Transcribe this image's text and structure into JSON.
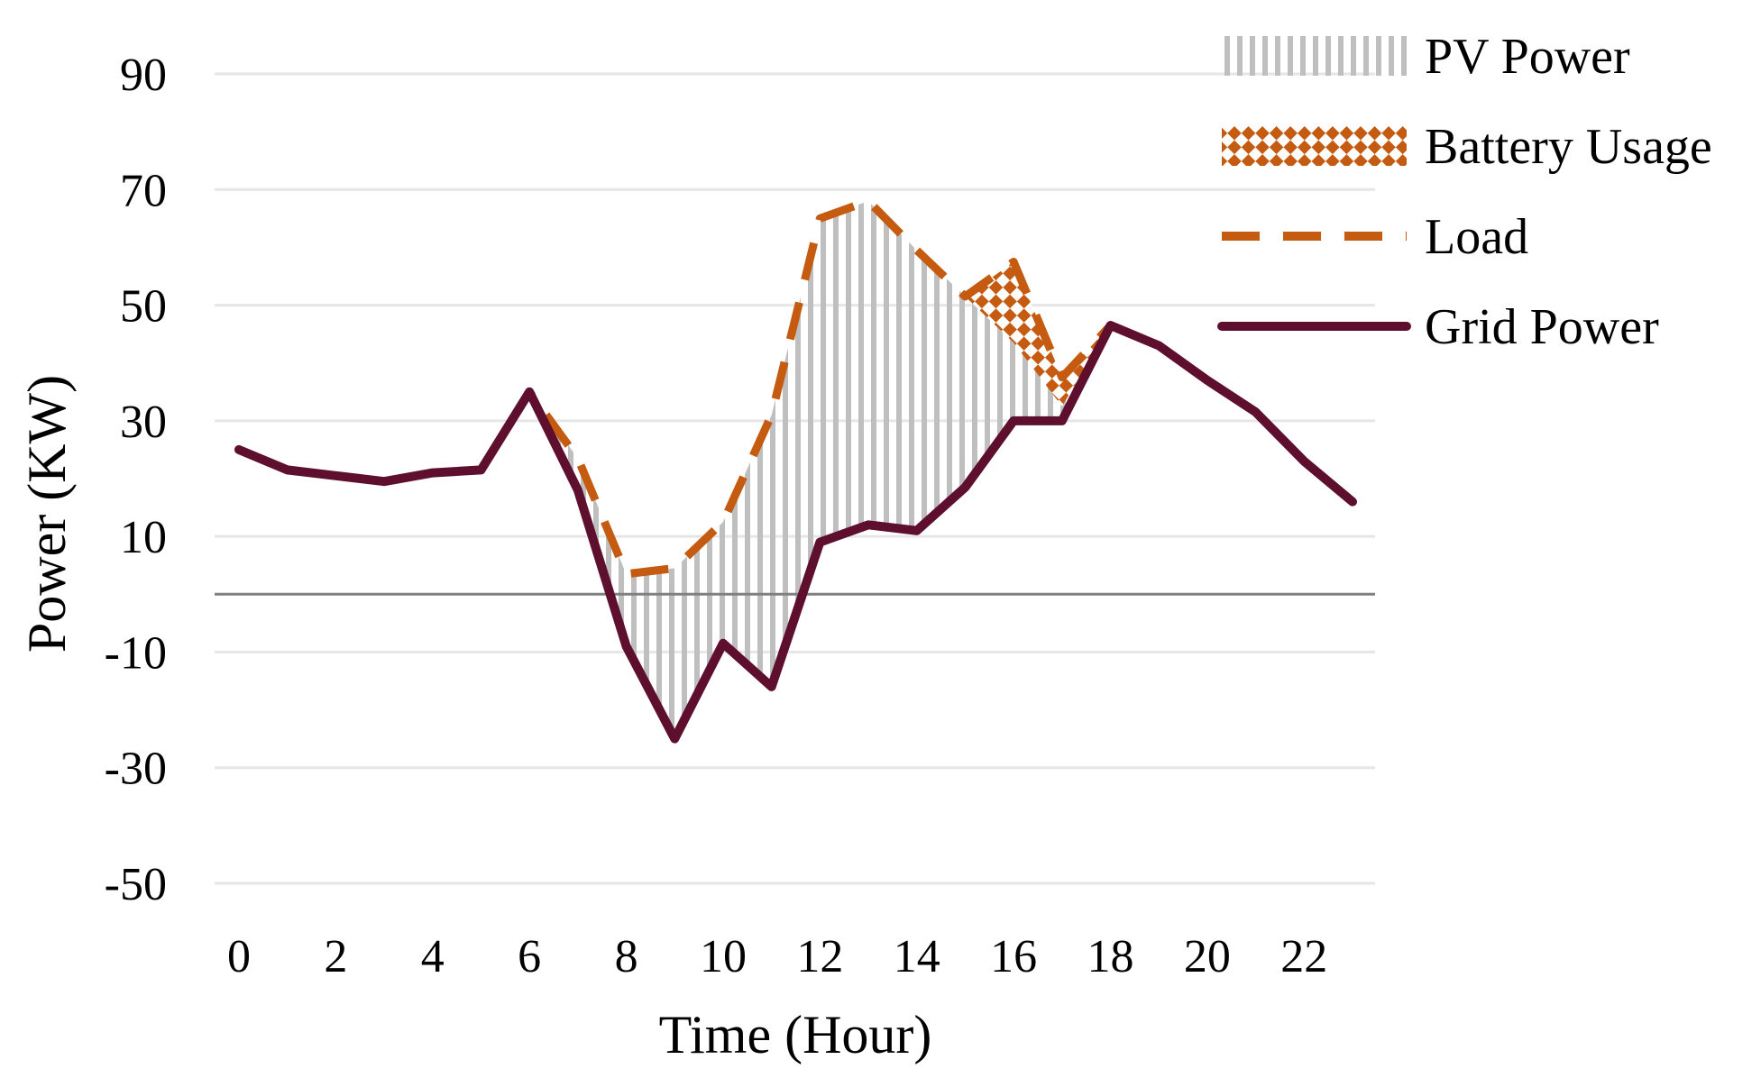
{
  "chart_data": {
    "type": "line",
    "title": "",
    "xlabel": "Time (Hour)",
    "ylabel": "Power (KW)",
    "xlim": [
      0,
      23
    ],
    "ylim": [
      -50,
      90
    ],
    "x_ticks": [
      0,
      2,
      4,
      6,
      8,
      10,
      12,
      14,
      16,
      18,
      20,
      22
    ],
    "y_ticks": [
      90,
      70,
      50,
      30,
      10,
      -10,
      -30,
      -50
    ],
    "x": [
      0,
      1,
      2,
      3,
      4,
      5,
      6,
      7,
      8,
      9,
      10,
      11,
      12,
      13,
      14,
      15,
      16,
      17,
      18,
      19,
      20,
      21,
      22,
      23
    ],
    "grid": true,
    "legend_position": "top-right",
    "colors": {
      "pv": "#bfbfbf",
      "battery": "#c55a11",
      "load": "#c55a11",
      "grid_power": "#5f0f2e",
      "gridline": "#e6e6e6",
      "zero_line": "#808080"
    },
    "series": [
      {
        "name": "Load",
        "values": [
          25,
          21.5,
          20.5,
          19.5,
          21,
          21.5,
          35,
          23.5,
          3.5,
          4.5,
          12.5,
          31,
          65,
          68,
          59.5,
          51.5,
          57.5,
          37.5,
          46.5,
          43,
          37,
          31.5,
          23,
          16
        ]
      },
      {
        "name": "Grid Power",
        "values": [
          25,
          21.5,
          20.5,
          19.5,
          21,
          21.5,
          35,
          18,
          -9,
          -25,
          -8.5,
          -16,
          9,
          12,
          11,
          18.5,
          30,
          30,
          46.5,
          43,
          37,
          31.5,
          23,
          16
        ]
      },
      {
        "name": "PV Power",
        "values": [
          0,
          0,
          0,
          0,
          0,
          0,
          0,
          5.5,
          12.5,
          29.5,
          21,
          47,
          56,
          56,
          48.5,
          33,
          13.5,
          2.5,
          0,
          0,
          0,
          0,
          0,
          0
        ]
      },
      {
        "name": "Battery Usage",
        "values": [
          0,
          0,
          0,
          0,
          0,
          0,
          0,
          0,
          0,
          0,
          0,
          0,
          0,
          0,
          0,
          0,
          14,
          5,
          0,
          0,
          0,
          0,
          0,
          0
        ]
      }
    ],
    "legend": [
      "PV Power",
      "Battery Usage",
      "Load",
      "Grid Power"
    ]
  }
}
